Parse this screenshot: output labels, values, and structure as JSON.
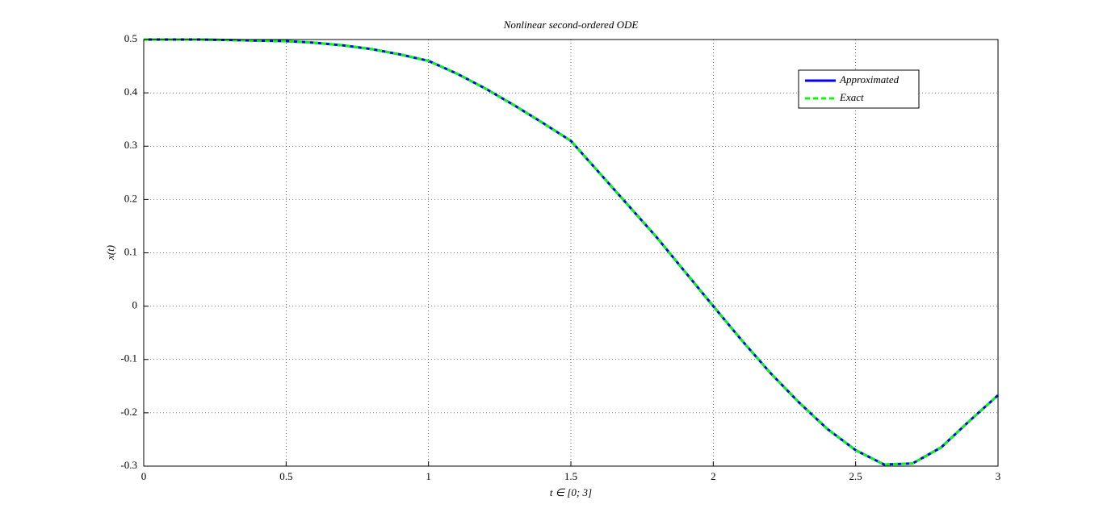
{
  "chart_data": {
    "type": "line",
    "title": "Nonlinear second-ordered ODE",
    "x_label": "t ∈ [0; 3]",
    "y_label": "x(t)",
    "x": [
      0,
      0.1,
      0.2,
      0.3,
      0.4,
      0.5,
      0.6,
      0.7,
      0.8,
      0.9,
      1.0,
      1.1,
      1.2,
      1.3,
      1.4,
      1.5,
      1.6,
      1.7,
      1.8,
      1.9,
      2.0,
      2.1,
      2.2,
      2.3,
      2.4,
      2.5,
      2.6,
      2.7,
      2.8,
      2.9,
      3.0
    ],
    "series": [
      {
        "name": "Approximated",
        "color": "#0000ff",
        "dash": false,
        "values": [
          0.5,
          0.5,
          0.5,
          0.499,
          0.498,
          0.497,
          0.494,
          0.489,
          0.482,
          0.472,
          0.46,
          0.436,
          0.408,
          0.377,
          0.344,
          0.31,
          0.25,
          0.19,
          0.13,
          0.065,
          0,
          -0.064,
          -0.125,
          -0.18,
          -0.23,
          -0.27,
          -0.297,
          -0.295,
          -0.265,
          -0.215,
          -0.167
        ]
      },
      {
        "name": "Exact",
        "color": "#00ff00",
        "dash": true,
        "values": [
          0.5,
          0.5,
          0.5,
          0.499,
          0.498,
          0.497,
          0.494,
          0.489,
          0.482,
          0.472,
          0.46,
          0.436,
          0.408,
          0.377,
          0.344,
          0.31,
          0.25,
          0.19,
          0.13,
          0.065,
          0,
          -0.064,
          -0.125,
          -0.18,
          -0.23,
          -0.27,
          -0.297,
          -0.295,
          -0.265,
          -0.215,
          -0.167
        ]
      }
    ],
    "xlim": [
      0,
      3
    ],
    "xticks": [
      0,
      0.5,
      1,
      1.5,
      2,
      2.5,
      3
    ],
    "ylim": [
      -0.3,
      0.5
    ],
    "yticks": [
      -0.3,
      -0.2,
      -0.1,
      0,
      0.1,
      0.2,
      0.3,
      0.4,
      0.5
    ],
    "grid": true,
    "legend_position": "upper-right"
  }
}
